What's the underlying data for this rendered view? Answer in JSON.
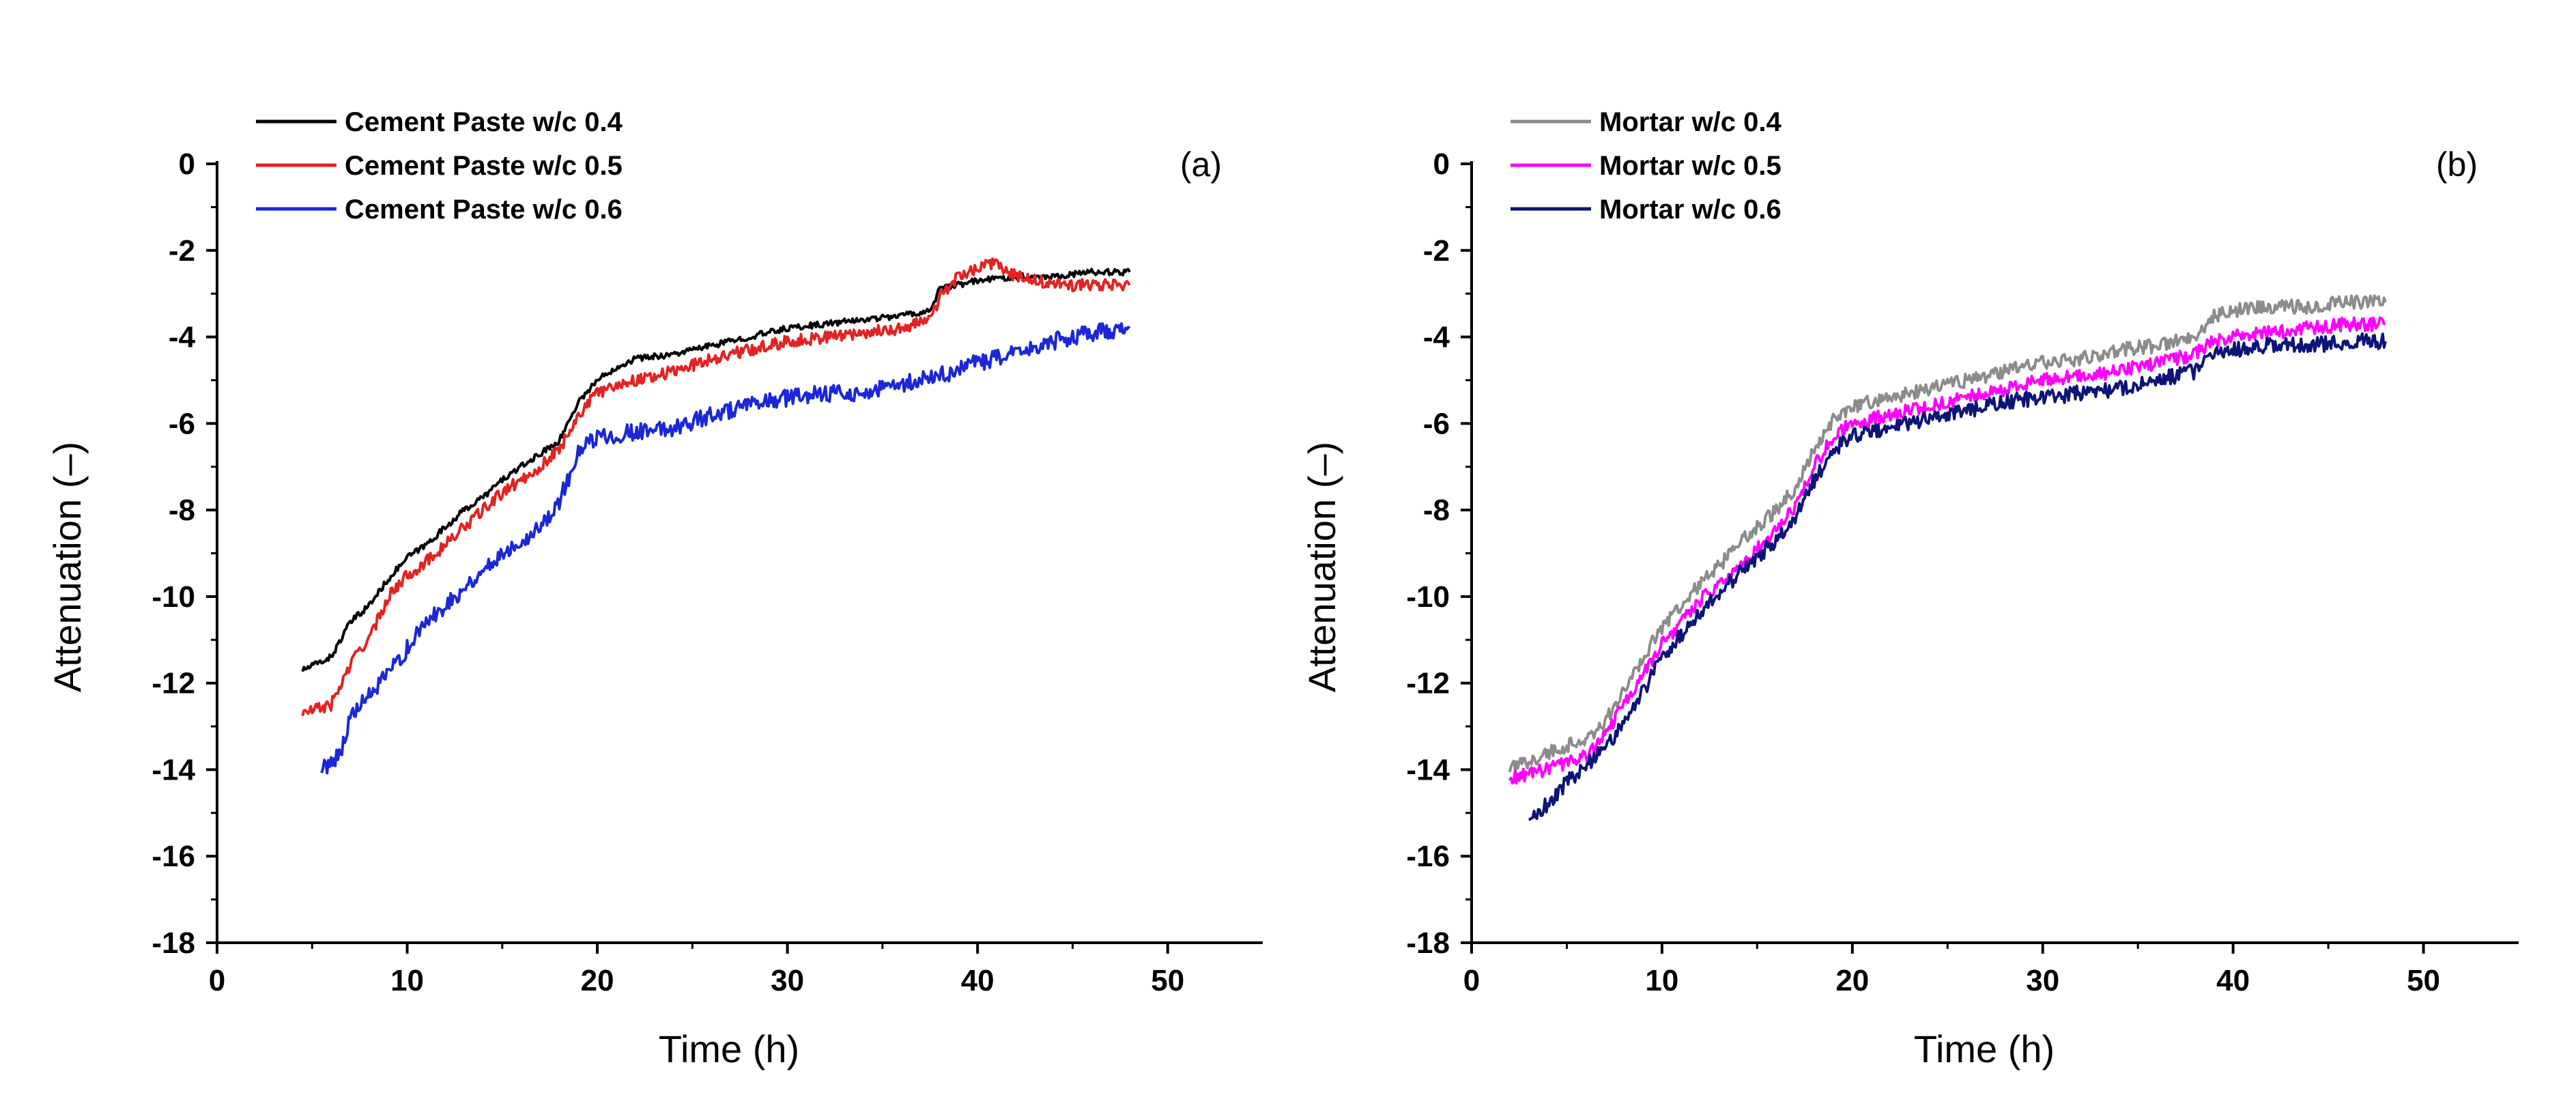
{
  "chart_data": [
    {
      "type": "line",
      "panel_label": "(a)",
      "xlabel": "Time (h)",
      "ylabel": "Attenuation (–)",
      "xlim": [
        0,
        55
      ],
      "ylim": [
        -18,
        0
      ],
      "xticks": [
        0,
        10,
        20,
        30,
        40,
        50
      ],
      "yticks": [
        0,
        -2,
        -4,
        -6,
        -8,
        -10,
        -12,
        -14,
        -16,
        -18
      ],
      "legend_position": "top-left",
      "series": [
        {
          "name": "Cement Paste w/c 0.4",
          "color": "#000000",
          "noise": 0.07,
          "x": [
            4.5,
            6,
            7,
            8,
            9,
            10,
            11,
            12,
            13,
            14,
            15,
            16,
            17,
            18,
            19,
            20,
            21,
            22,
            24,
            26,
            28,
            30,
            32,
            34,
            36,
            37.5,
            38,
            40,
            42,
            44,
            46,
            48
          ],
          "y": [
            -11.7,
            -11.4,
            -10.6,
            -10.2,
            -9.6,
            -9.1,
            -8.8,
            -8.4,
            -8.0,
            -7.7,
            -7.3,
            -7.0,
            -6.7,
            -6.4,
            -5.5,
            -5.0,
            -4.7,
            -4.5,
            -4.4,
            -4.2,
            -4.0,
            -3.8,
            -3.7,
            -3.6,
            -3.5,
            -3.4,
            -2.9,
            -2.7,
            -2.6,
            -2.6,
            -2.5,
            -2.5
          ]
        },
        {
          "name": "Cement Paste w/c 0.5",
          "color": "#e32322",
          "noise": 0.14,
          "x": [
            4.5,
            6,
            7,
            7.5,
            8,
            9,
            10,
            11,
            12,
            13,
            14,
            15,
            16,
            17,
            18,
            19,
            20,
            21,
            22,
            24,
            26,
            28,
            30,
            32,
            34,
            36,
            37.5,
            38,
            39,
            40,
            41,
            42,
            44,
            46,
            48
          ],
          "y": [
            -12.7,
            -12.5,
            -11.6,
            -11.2,
            -11.0,
            -10.0,
            -9.5,
            -9.2,
            -8.8,
            -8.4,
            -8.0,
            -7.6,
            -7.3,
            -7.0,
            -6.6,
            -5.8,
            -5.3,
            -5.1,
            -5.0,
            -4.8,
            -4.5,
            -4.3,
            -4.1,
            -4.0,
            -3.9,
            -3.8,
            -3.6,
            -3.1,
            -2.6,
            -2.4,
            -2.3,
            -2.6,
            -2.8,
            -2.8,
            -2.8
          ]
        },
        {
          "name": "Cement Paste w/c 0.6",
          "color": "#1b27d8",
          "noise": 0.2,
          "x": [
            5.5,
            6.5,
            7,
            8,
            9,
            10,
            11,
            12,
            13,
            14,
            15,
            16,
            17,
            18,
            19,
            20,
            22,
            24,
            26,
            28,
            30,
            32,
            34,
            36,
            38,
            40,
            42,
            44,
            46,
            48
          ],
          "y": [
            -14.0,
            -13.6,
            -12.8,
            -12.3,
            -11.8,
            -11.2,
            -10.6,
            -10.2,
            -9.8,
            -9.4,
            -9.0,
            -8.7,
            -8.4,
            -7.8,
            -6.7,
            -6.3,
            -6.2,
            -6.1,
            -5.8,
            -5.6,
            -5.4,
            -5.3,
            -5.3,
            -5.1,
            -4.9,
            -4.6,
            -4.4,
            -4.1,
            -3.9,
            -3.8
          ]
        }
      ]
    },
    {
      "type": "line",
      "panel_label": "(b)",
      "xlabel": "Time (h)",
      "ylabel": "Attenuation (–)",
      "xlim": [
        0,
        55
      ],
      "ylim": [
        -18,
        0
      ],
      "xticks": [
        0,
        10,
        20,
        30,
        40,
        50
      ],
      "yticks": [
        0,
        -2,
        -4,
        -6,
        -8,
        -10,
        -12,
        -14,
        -16,
        -18
      ],
      "legend_position": "top-left",
      "series": [
        {
          "name": "Mortar w/c 0.4",
          "color": "#8c8c8c",
          "noise": 0.16,
          "x": [
            2,
            4,
            6,
            7,
            8,
            9,
            10,
            11,
            12,
            13,
            14,
            15,
            16,
            17,
            18,
            19,
            20,
            22,
            24,
            26,
            28,
            30,
            32,
            34,
            36,
            38,
            39,
            40,
            42,
            44,
            46,
            48
          ],
          "y": [
            -14.0,
            -13.6,
            -13.3,
            -12.9,
            -12.2,
            -11.4,
            -10.7,
            -10.2,
            -9.7,
            -9.3,
            -8.8,
            -8.4,
            -8.0,
            -7.5,
            -6.6,
            -5.9,
            -5.6,
            -5.4,
            -5.2,
            -5.0,
            -4.8,
            -4.6,
            -4.5,
            -4.3,
            -4.2,
            -4.0,
            -3.5,
            -3.4,
            -3.3,
            -3.3,
            -3.2,
            -3.2
          ]
        },
        {
          "name": "Mortar w/c 0.5",
          "color": "#ff00ff",
          "noise": 0.16,
          "x": [
            2,
            4,
            6,
            7,
            8,
            9,
            10,
            11,
            12,
            13,
            14,
            15,
            16,
            17,
            18,
            19,
            20,
            22,
            24,
            26,
            28,
            30,
            32,
            34,
            36,
            38,
            39,
            40,
            42,
            44,
            46,
            48
          ],
          "y": [
            -14.2,
            -14.0,
            -13.7,
            -13.2,
            -12.5,
            -11.8,
            -11.1,
            -10.6,
            -10.1,
            -9.7,
            -9.3,
            -8.9,
            -8.5,
            -7.9,
            -7.0,
            -6.3,
            -6.0,
            -5.8,
            -5.6,
            -5.4,
            -5.2,
            -5.0,
            -4.9,
            -4.8,
            -4.6,
            -4.4,
            -4.1,
            -4.0,
            -3.9,
            -3.8,
            -3.7,
            -3.7
          ]
        },
        {
          "name": "Mortar w/c 0.6",
          "color": "#0c1478",
          "noise": 0.18,
          "x": [
            3,
            4,
            5,
            6,
            7,
            8,
            9,
            10,
            11,
            12,
            13,
            14,
            15,
            16,
            17,
            18,
            19,
            20,
            22,
            24,
            26,
            28,
            30,
            32,
            34,
            36,
            38,
            39,
            40,
            42,
            44,
            46,
            48
          ],
          "y": [
            -15.1,
            -14.8,
            -14.3,
            -13.9,
            -13.5,
            -12.9,
            -12.2,
            -11.4,
            -10.9,
            -10.4,
            -9.9,
            -9.5,
            -9.1,
            -8.7,
            -8.2,
            -7.3,
            -6.6,
            -6.3,
            -6.1,
            -5.9,
            -5.7,
            -5.5,
            -5.4,
            -5.3,
            -5.2,
            -5.0,
            -4.8,
            -4.4,
            -4.3,
            -4.2,
            -4.2,
            -4.1,
            -4.1
          ]
        }
      ]
    }
  ]
}
